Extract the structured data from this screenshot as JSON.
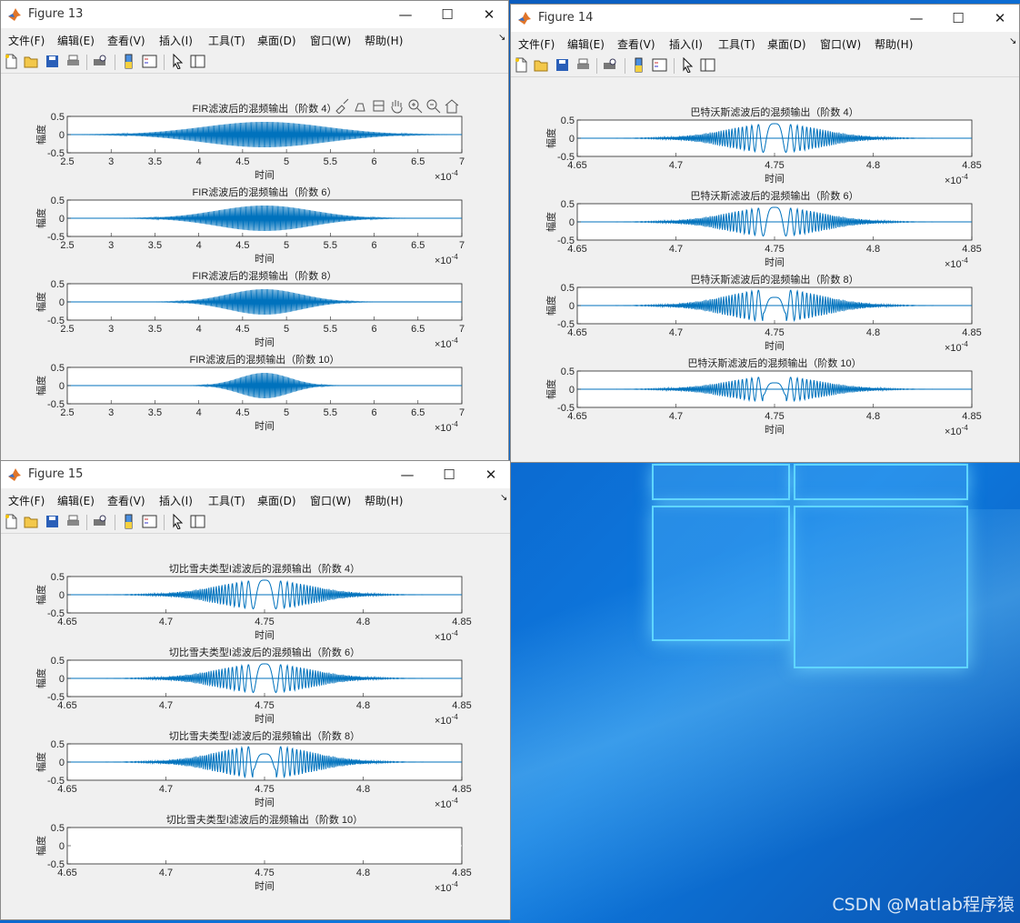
{
  "menus": [
    "文件(F)",
    "编辑(E)",
    "查看(V)",
    "插入(I)",
    "工具(T)",
    "桌面(D)",
    "窗口(W)",
    "帮助(H)"
  ],
  "ylabel": "幅度",
  "xlabel": "时间",
  "exponent_base": "×10",
  "exponent": "-4",
  "watermark": "CSDN @Matlab程序猿",
  "icons": [
    "new-file-icon",
    "open-folder-icon",
    "save-icon",
    "print-icon",
    "print-preview-icon",
    "colorbar-icon",
    "legend-icon",
    "pointer-icon",
    "property-inspector-icon"
  ],
  "axes_tools": [
    "brush-icon",
    "data-tips-icon",
    "rotate-icon",
    "pan-hand-icon",
    "zoom-in-icon",
    "zoom-out-icon",
    "home-icon"
  ],
  "colors": {
    "line": "#0072BD",
    "titlebar": "#ffffff",
    "window": "#f0f0f0"
  },
  "figures": [
    {
      "title": "Figure 13",
      "xtick_labels": [
        "2.5",
        "3",
        "3.5",
        "4",
        "4.5",
        "5",
        "5.5",
        "6",
        "6.5",
        "7"
      ],
      "subplots": [
        {
          "title": "FIR滤波后的混频输出（阶数 4）"
        },
        {
          "title": "FIR滤波后的混频输出（阶数 6）"
        },
        {
          "title": "FIR滤波后的混频输出（阶数 8）"
        },
        {
          "title": "FIR滤波后的混频输出（阶数 10）"
        }
      ]
    },
    {
      "title": "Figure 14",
      "xtick_labels": [
        "4.65",
        "4.7",
        "4.75",
        "4.8",
        "4.85"
      ],
      "subplots": [
        {
          "title": "巴特沃斯滤波后的混频输出（阶数 4）"
        },
        {
          "title": "巴特沃斯滤波后的混频输出（阶数 6）"
        },
        {
          "title": "巴特沃斯滤波后的混频输出（阶数 8）"
        },
        {
          "title": "巴特沃斯滤波后的混频输出（阶数 10）"
        }
      ]
    },
    {
      "title": "Figure 15",
      "xtick_labels": [
        "4.65",
        "4.7",
        "4.75",
        "4.8",
        "4.85"
      ],
      "subplots": [
        {
          "title": "切比雪夫类型I滤波后的混频输出（阶数 4）"
        },
        {
          "title": "切比雪夫类型I滤波后的混频输出（阶数 6）"
        },
        {
          "title": "切比雪夫类型I滤波后的混频输出（阶数 8）"
        },
        {
          "title": "切比雪夫类型I滤波后的混频输出（阶数 10）"
        }
      ]
    }
  ],
  "ytick_labels": [
    "0.5",
    "0",
    "-0.5"
  ],
  "chart_data": [
    {
      "type": "line",
      "figure": "Figure 13",
      "xlim": [
        0.00025,
        0.0007
      ],
      "ylim": [
        -0.5,
        0.5
      ],
      "x_unit": "时间",
      "y_unit": "幅度",
      "series": [
        {
          "order": 4,
          "envelope_peak": 0.35,
          "envelope_center": 0.000475
        },
        {
          "order": 6,
          "envelope_peak": 0.35,
          "envelope_center": 0.000475
        },
        {
          "order": 8,
          "envelope_peak": 0.35,
          "envelope_center": 0.000475
        },
        {
          "order": 10,
          "envelope_peak": 0.35,
          "envelope_center": 0.000475
        }
      ]
    },
    {
      "type": "line",
      "figure": "Figure 14",
      "xlim": [
        0.000465,
        0.000485
      ],
      "ylim": [
        -0.5,
        0.5
      ],
      "series": [
        {
          "order": 4,
          "peak": 0.4
        },
        {
          "order": 6,
          "peak": 0.4
        },
        {
          "order": 8,
          "peak": 0.45
        },
        {
          "order": 10,
          "peak": 0.35
        }
      ]
    },
    {
      "type": "line",
      "figure": "Figure 15",
      "xlim": [
        0.000465,
        0.000485
      ],
      "ylim": [
        -0.5,
        0.5
      ],
      "series": [
        {
          "order": 4,
          "peak": 0.4
        },
        {
          "order": 6,
          "peak": 0.4
        },
        {
          "order": 8,
          "peak": 0.45
        },
        {
          "order": 10,
          "peak": 0.0
        }
      ]
    }
  ]
}
